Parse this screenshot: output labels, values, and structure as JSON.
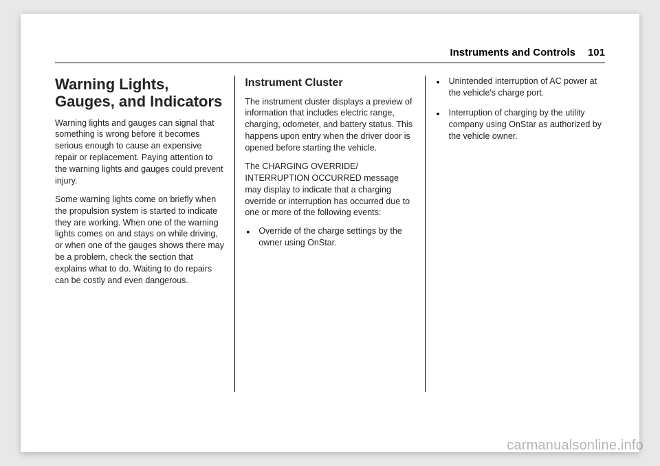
{
  "header": {
    "section_title": "Instruments and Controls",
    "page_number": "101"
  },
  "col1": {
    "heading": "Warning Lights, Gauges, and Indicators",
    "p1": "Warning lights and gauges can signal that something is wrong before it becomes serious enough to cause an expensive repair or replacement. Paying attention to the warning lights and gauges could prevent injury.",
    "p2": "Some warning lights come on briefly when the propulsion system is started to indicate they are working. When one of the warning lights comes on and stays on while driving, or when one of the gauges shows there may be a problem, check the section that explains what to do. Waiting to do repairs can be costly and even dangerous."
  },
  "col2": {
    "heading": "Instrument Cluster",
    "p1": "The instrument cluster displays a preview of information that includes electric range, charging, odometer, and battery status. This happens upon entry when the driver door is opened before starting the vehicle.",
    "p2": "The CHARGING OVERRIDE/ INTERRUPTION OCCURRED message may display to indicate that a charging override or interruption has occurred due to one or more of the following events:",
    "bullet1": "Override of the charge settings by the owner using OnStar."
  },
  "col3": {
    "bullet1": "Unintended interruption of AC power at the vehicle's charge port.",
    "bullet2": "Interruption of charging by the utility company using OnStar as authorized by the vehicle owner."
  },
  "watermark": "carmanualsonline.info"
}
